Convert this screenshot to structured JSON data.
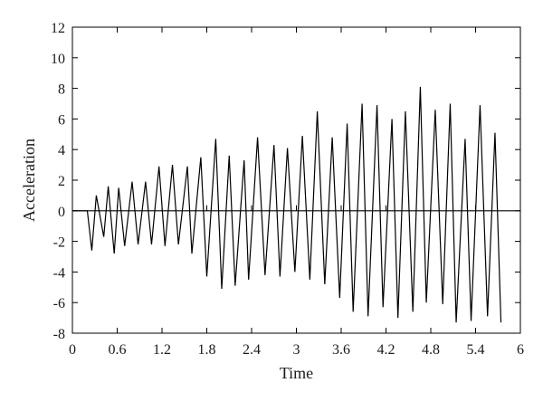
{
  "chart_data": {
    "type": "line",
    "title": "",
    "xlabel": "Time",
    "ylabel": "Acceleration",
    "xlim": [
      0,
      6
    ],
    "ylim": [
      -8,
      12
    ],
    "xticks": [
      0,
      0.6,
      1.2,
      1.8,
      2.4,
      3,
      3.6,
      4.2,
      4.8,
      5.4,
      6
    ],
    "xtick_labels": [
      "0",
      "0.6",
      "1.2",
      "1.8",
      "2.4",
      "3",
      "3.6",
      "4.2",
      "4.8",
      "5.4",
      "6"
    ],
    "yticks": [
      -8,
      -6,
      -4,
      -2,
      0,
      2,
      4,
      6,
      8,
      10,
      12
    ],
    "ytick_labels": [
      "-8",
      "-6",
      "-4",
      "-2",
      "0",
      "2",
      "4",
      "6",
      "8",
      "10",
      "12"
    ],
    "grid": false,
    "zero_line": true,
    "line_color": "#000000",
    "series": [
      {
        "x": [
          0,
          0.2,
          0.26,
          0.32,
          0.42,
          0.48,
          0.56,
          0.62,
          0.7,
          0.8,
          0.88,
          0.98,
          1.06,
          1.16,
          1.24,
          1.34,
          1.42,
          1.54,
          1.6,
          1.72,
          1.8,
          1.92,
          2.0,
          2.1,
          2.18,
          2.3,
          2.36,
          2.48,
          2.58,
          2.7,
          2.78,
          2.88,
          2.98,
          3.08,
          3.18,
          3.28,
          3.38,
          3.48,
          3.58,
          3.68,
          3.76,
          3.88,
          3.96,
          4.08,
          4.16,
          4.28,
          4.36,
          4.46,
          4.56,
          4.66,
          4.74,
          4.86,
          4.96,
          5.06,
          5.14,
          5.26,
          5.34,
          5.46,
          5.56,
          5.66,
          5.74
        ],
        "y": [
          0,
          0,
          -2.6,
          1.0,
          -1.7,
          1.6,
          -2.8,
          1.5,
          -2.3,
          1.9,
          -2.2,
          1.9,
          -2.2,
          2.9,
          -2.3,
          3.0,
          -2.2,
          2.9,
          -2.8,
          3.5,
          -4.3,
          4.7,
          -5.1,
          3.6,
          -4.9,
          3.3,
          -4.5,
          4.8,
          -4.2,
          4.3,
          -4.3,
          4.1,
          -4.0,
          4.9,
          -4.5,
          6.5,
          -4.8,
          4.8,
          -5.7,
          5.7,
          -6.6,
          7.0,
          -6.9,
          6.9,
          -6.3,
          6.0,
          -7.0,
          6.5,
          -6.6,
          8.1,
          -6.0,
          6.6,
          -6.1,
          7.0,
          -7.3,
          4.7,
          -7.2,
          6.9,
          -6.9,
          5.1,
          -7.3
        ]
      }
    ]
  }
}
